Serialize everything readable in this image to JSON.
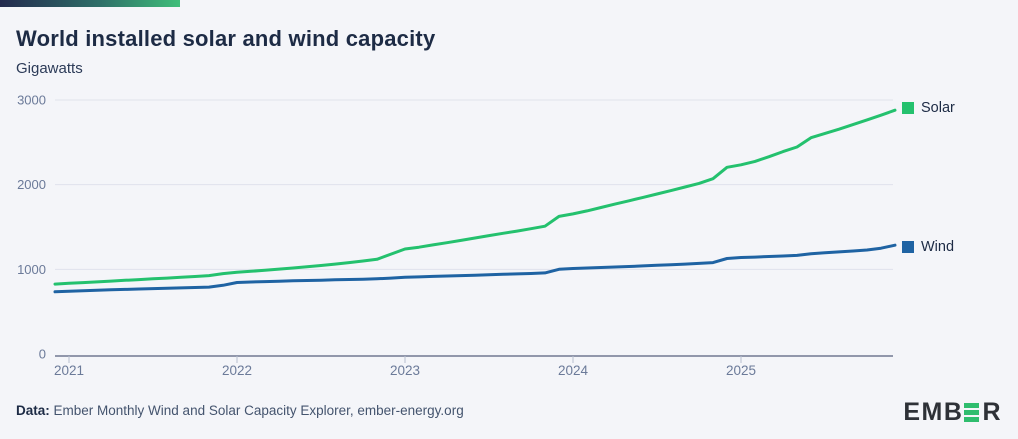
{
  "header": {
    "title": "World installed solar and wind capacity",
    "subtitle": "Gigawatts"
  },
  "legend": {
    "solar_label": "Solar",
    "wind_label": "Wind"
  },
  "footer": {
    "label": "Data:",
    "text": " Ember Monthly Wind and Solar Capacity Explorer, ember-energy.org"
  },
  "logo": {
    "part1": "EMB",
    "part2": "R"
  },
  "colors": {
    "solar": "#24c16e",
    "wind": "#1f63a3",
    "gridline": "#dfe2ec",
    "axis_line": "#565f7d",
    "tick_mark": "#b9c0d0",
    "axis_text": "#6b7a99",
    "background": "#f4f5f9",
    "accent_bar_start": "#232a4e",
    "accent_bar_end": "#3fbe7a"
  },
  "chart_data": {
    "type": "line",
    "title": "World installed solar and wind capacity",
    "ylabel": "Gigawatts",
    "unit": "GW",
    "x_start_month": "2020-12",
    "x_end_month": "2025-12",
    "months_per_point": 1,
    "x_ticks": [
      "2021",
      "2022",
      "2023",
      "2024",
      "2025"
    ],
    "y_ticks": [
      0,
      1000,
      2000,
      3000
    ],
    "ylim": [
      0,
      3000
    ],
    "grid": "horizontal",
    "legend_position": "right-of-line-ends",
    "series": [
      {
        "name": "Solar",
        "color": "#24c16e",
        "values": [
          825,
          835,
          843,
          852,
          861,
          870,
          879,
          888,
          897,
          906,
          915,
          926,
          950,
          965,
          977,
          990,
          1003,
          1016,
          1030,
          1045,
          1062,
          1080,
          1098,
          1118,
          1180,
          1240,
          1262,
          1288,
          1315,
          1342,
          1370,
          1398,
          1425,
          1452,
          1480,
          1510,
          1625,
          1655,
          1690,
          1730,
          1770,
          1810,
          1850,
          1890,
          1930,
          1972,
          2015,
          2070,
          2205,
          2235,
          2275,
          2330,
          2390,
          2445,
          2555,
          2605,
          2655,
          2710,
          2765,
          2820,
          2880
        ]
      },
      {
        "name": "Wind",
        "color": "#1f63a3",
        "values": [
          735,
          742,
          748,
          753,
          758,
          763,
          768,
          773,
          777,
          781,
          785,
          790,
          812,
          845,
          850,
          855,
          860,
          864,
          868,
          872,
          876,
          880,
          884,
          888,
          896,
          906,
          911,
          916,
          921,
          926,
          931,
          936,
          941,
          946,
          951,
          958,
          1000,
          1010,
          1016,
          1022,
          1028,
          1034,
          1041,
          1048,
          1055,
          1062,
          1070,
          1079,
          1128,
          1140,
          1145,
          1151,
          1157,
          1164,
          1185,
          1196,
          1206,
          1216,
          1228,
          1250,
          1285
        ]
      }
    ]
  }
}
